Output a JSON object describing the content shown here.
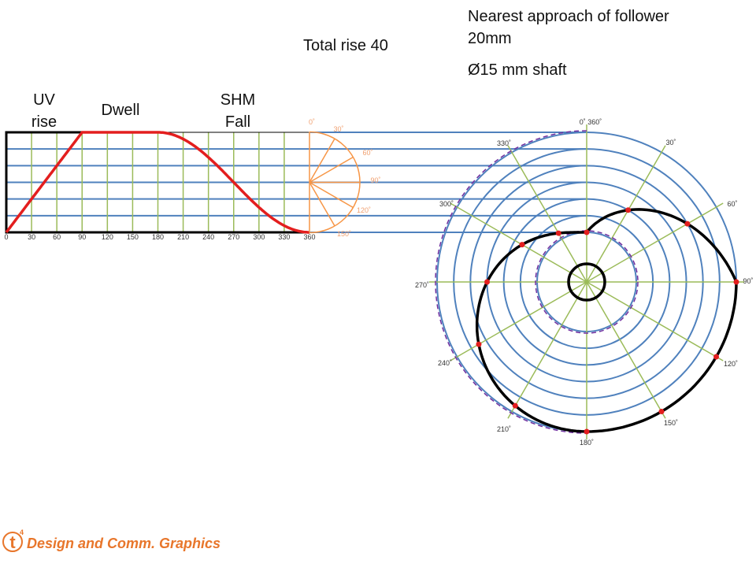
{
  "annotations": {
    "nearest_approach": [
      "Nearest approach of follower",
      "20mm"
    ],
    "shaft": "Ø15 mm shaft",
    "total_rise": "Total rise 40"
  },
  "sections": [
    [
      "UV",
      "rise"
    ],
    [
      "Dwell"
    ],
    [
      "SHM",
      "Fall"
    ]
  ],
  "displacement_axis_labels": [
    "0",
    "30",
    "60",
    "90",
    "120",
    "150",
    "180",
    "210",
    "240",
    "270",
    "300",
    "330",
    "360"
  ],
  "follower_angle_labels": [
    "0˚",
    "30˚",
    "60˚",
    "90˚",
    "120˚",
    "150˚"
  ],
  "cam_angle_labels": [
    "0˚ 360˚",
    "30˚",
    "60˚",
    "90˚",
    "120˚",
    "150˚",
    "180˚",
    "210˚",
    "240˚",
    "270˚",
    "300˚",
    "330˚"
  ],
  "logo": {
    "mark": "t",
    "superscript": "4",
    "text": "Design and Comm. Graphics"
  }
}
